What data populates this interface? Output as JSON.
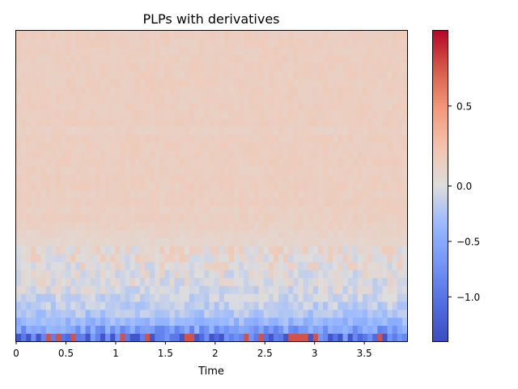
{
  "chart_data": {
    "type": "heatmap",
    "title": "PLPs with derivatives",
    "xlabel": "Time",
    "ylabel": "",
    "x_ticks": [
      0,
      0.5,
      1,
      1.5,
      2,
      2.5,
      3,
      3.5
    ],
    "x_tick_labels": [
      "0",
      "0.5",
      "1",
      "1.5",
      "2",
      "2.5",
      "3",
      "3.5"
    ],
    "xlim": [
      0,
      3.93
    ],
    "n_frames": 79,
    "n_coefficients": 39,
    "colormap": "coolwarm",
    "vmin": -1.4,
    "vmax": 0.97,
    "colorbar": {
      "ticks": [
        0.5,
        0.0,
        -0.5,
        -1.0
      ],
      "tick_labels": [
        "0.5",
        "0.0",
        "−0.5",
        "−1.0"
      ]
    },
    "row_profile_bottom_to_top": [
      -0.85,
      -0.6,
      -0.35,
      -0.22,
      -0.15,
      -0.1,
      -0.05,
      -0.02,
      0.0,
      0.02,
      0.05,
      0.06,
      0.08,
      0.1,
      0.12,
      0.14,
      0.13,
      0.15,
      0.14,
      0.15,
      0.15,
      0.14,
      0.15,
      0.15,
      0.15,
      0.15,
      0.13,
      0.15,
      0.15,
      0.15,
      0.15,
      0.15,
      0.15,
      0.15,
      0.15,
      0.15,
      0.15,
      0.15,
      0.15
    ],
    "grid": false,
    "legend": "colorbar right"
  }
}
